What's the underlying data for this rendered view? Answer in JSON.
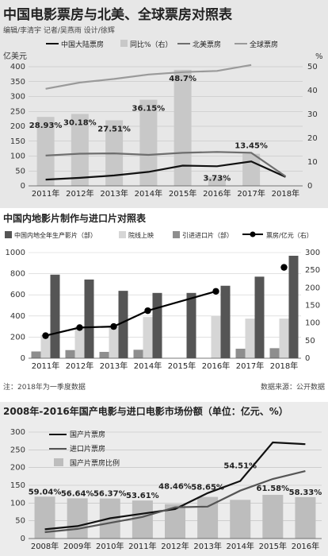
{
  "panel1": {
    "title": "中国电影票房与北美、全球票房对照表",
    "credits": "编辑/李清宇 记者/吴燕雨 设计/徐辉",
    "y_unit_left": "亿美元",
    "y_unit_right": "%",
    "legend": [
      "中国大陆票房",
      "同比%（右）",
      "北美票房",
      "全球票房"
    ]
  },
  "panel2": {
    "title": "中国内地影片制作与进口片对照表",
    "legend": [
      "中国内地全年生产影片（部）",
      "院线上映",
      "引进进口片（部）",
      "票房/亿元（右）"
    ],
    "note": "注：2018年为一季度数据",
    "source": "数据来源：公开数据"
  },
  "panel3": {
    "title": "2008年-2016年国产电影与进口电影市场份额（单位：亿元、%）",
    "legend": [
      "国产片票房",
      "进口片票房",
      "国产片票房比例"
    ]
  },
  "chart_data": [
    {
      "type": "bar",
      "title": "中国电影票房与北美、全球票房对照表",
      "categories": [
        "2011年",
        "2012年",
        "2013年",
        "2014年",
        "2015年",
        "2016年",
        "2017年",
        "2018年"
      ],
      "ylim_left": [
        0,
        400
      ],
      "yticks_left": [
        0,
        50,
        100,
        150,
        200,
        250,
        300,
        350,
        400
      ],
      "ylim_right": [
        0,
        50
      ],
      "yticks_right": [
        0,
        10,
        20,
        30,
        40,
        50
      ],
      "series": [
        {
          "name": "同比%（右）",
          "kind": "bar",
          "axis": "right",
          "values": [
            28.93,
            30.18,
            27.51,
            36.15,
            48.7,
            3.73,
            13.45,
            null
          ],
          "labels": [
            "28.93%",
            "30.18%",
            "27.51%",
            "36.15%",
            "48.7%",
            "3.73%",
            "13.45%",
            ""
          ]
        },
        {
          "name": "中国大陆票房",
          "kind": "line",
          "axis": "left",
          "values": [
            21,
            27,
            35,
            47,
            68,
            66,
            82,
            30
          ]
        },
        {
          "name": "北美票房",
          "kind": "line",
          "axis": "left",
          "values": [
            102,
            108,
            109,
            104,
            111,
            114,
            111,
            32
          ]
        },
        {
          "name": "全球票房",
          "kind": "line",
          "axis": "left",
          "values": [
            326,
            347,
            359,
            374,
            382,
            386,
            406,
            null
          ]
        }
      ],
      "grid": true,
      "legend_position": "top"
    },
    {
      "type": "bar",
      "title": "中国内地影片制作与进口片对照表",
      "categories": [
        "2011年",
        "2012年",
        "2013年",
        "2014年",
        "2015年",
        "2016年",
        "2017年",
        "2018年"
      ],
      "ylim_left": [
        0,
        1000
      ],
      "yticks_left": [
        0,
        200,
        400,
        600,
        800,
        1000
      ],
      "ylim_right": [
        0,
        300
      ],
      "yticks_right": [
        0,
        50,
        100,
        150,
        200,
        250,
        300
      ],
      "series": [
        {
          "name": "引进进口片（部）",
          "kind": "bar",
          "axis": "left",
          "values": [
            64,
            77,
            60,
            80,
            0,
            0,
            90,
            95
          ]
        },
        {
          "name": "院线上映",
          "kind": "bar",
          "axis": "left",
          "values": [
            220,
            300,
            300,
            390,
            0,
            400,
            375,
            375
          ]
        },
        {
          "name": "中国内地全年生产影片（部）",
          "kind": "bar",
          "axis": "left",
          "values": [
            791,
            745,
            638,
            618,
            618,
            686,
            772,
            970
          ]
        },
        {
          "name": "票房/亿元（右）",
          "kind": "line",
          "axis": "right",
          "values": [
            64,
            87,
            90,
            135,
            null,
            190,
            null,
            258
          ]
        }
      ],
      "grid": true,
      "legend_position": "top"
    },
    {
      "type": "bar",
      "title": "2008年-2016年国产电影与进口电影市场份额（单位：亿元、%）",
      "categories": [
        "2008年",
        "2009年",
        "2010年",
        "2011年",
        "2012年",
        "2013年",
        "2014年",
        "2015年",
        "2016年"
      ],
      "ylim": [
        0,
        300
      ],
      "yticks": [
        0,
        50,
        100,
        150,
        200,
        250,
        300
      ],
      "series": [
        {
          "name": "国产片票房比例",
          "kind": "bar",
          "values": [
            59.04,
            56.64,
            56.37,
            53.61,
            48.46,
            58.65,
            54.51,
            61.58,
            58.33
          ],
          "labels": [
            "59.04%",
            "56.64%",
            "56.37%",
            "53.61%",
            "48.46%",
            "58.65%",
            "54.51%",
            "61.58%",
            "58.33%"
          ]
        },
        {
          "name": "国产片票房",
          "kind": "line",
          "values": [
            26,
            35,
            57,
            70,
            83,
            128,
            162,
            271,
            266
          ]
        },
        {
          "name": "进口片票房",
          "kind": "line",
          "values": [
            18,
            27,
            44,
            61,
            88,
            90,
            135,
            168,
            190
          ]
        }
      ],
      "grid": true,
      "legend_position": "top-left"
    }
  ]
}
